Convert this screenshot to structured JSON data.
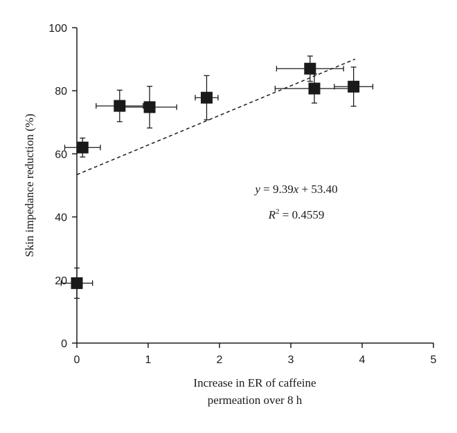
{
  "chart_data": {
    "type": "scatter",
    "xlabel_lines": [
      "Increase in ER of caffeine",
      "permeation over 8 h"
    ],
    "ylabel": "Skin impedance reduction (%)",
    "xlim": [
      0,
      5
    ],
    "ylim": [
      0,
      100
    ],
    "xticks": [
      0,
      1,
      2,
      3,
      4,
      5
    ],
    "yticks": [
      0,
      20,
      40,
      60,
      80,
      100
    ],
    "grid": false,
    "points": [
      {
        "x": 0.0,
        "y": 19.0,
        "xerr": 0.22,
        "yerr": 4.8
      },
      {
        "x": 0.08,
        "y": 62.0,
        "xerr": 0.25,
        "yerr": 3.0
      },
      {
        "x": 0.6,
        "y": 75.2,
        "xerr": 0.33,
        "yerr": 5.0
      },
      {
        "x": 1.02,
        "y": 74.8,
        "xerr": 0.38,
        "yerr": 6.6
      },
      {
        "x": 1.82,
        "y": 77.8,
        "xerr": 0.16,
        "yerr": 7.0
      },
      {
        "x": 3.27,
        "y": 87.0,
        "xerr": 0.47,
        "yerr": 4.0
      },
      {
        "x": 3.33,
        "y": 80.7,
        "xerr": 0.55,
        "yerr": 4.6
      },
      {
        "x": 3.88,
        "y": 81.3,
        "xerr": 0.27,
        "yerr": 6.2
      }
    ],
    "fit": {
      "slope": 9.39,
      "intercept": 53.4,
      "x_range": [
        0,
        3.9
      ],
      "style": "dashed"
    },
    "annotations": {
      "equation": {
        "y_var": "y",
        "x_var": "x",
        "eq_mid": " = 9.39",
        "eq_tail": " + 53.40"
      },
      "r_squared": {
        "r_var": "R",
        "sup": "2",
        "tail": " = 0.4559"
      }
    }
  },
  "colors": {
    "axis": "#1a1a1a",
    "marker": "#1a1a1a",
    "fit_line": "#1a1a1a"
  }
}
